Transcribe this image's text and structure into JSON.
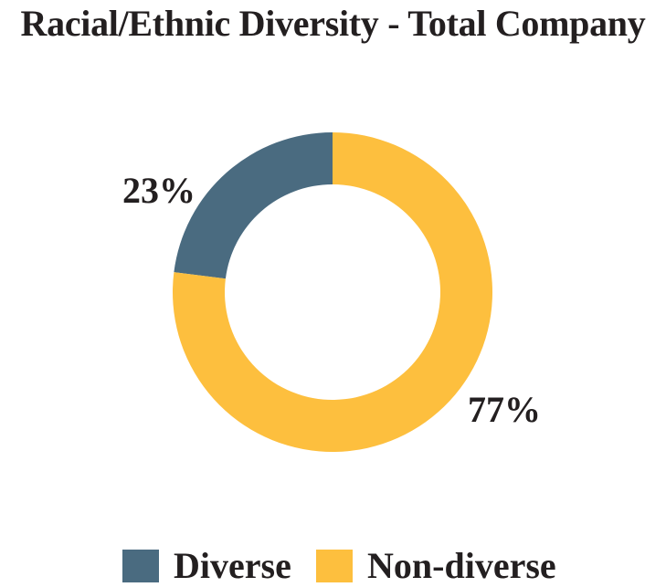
{
  "chart_data": {
    "type": "pie",
    "title": "Racial/Ethnic Diversity - Total Company",
    "donut": true,
    "categories": [
      "Diverse",
      "Non-diverse"
    ],
    "values": [
      23,
      77
    ],
    "labels": [
      "23%",
      "77%"
    ],
    "colors": [
      "#4a6b80",
      "#fdbf3e"
    ],
    "legend": {
      "placement": "bottom",
      "entries": [
        "Diverse",
        "Non-diverse"
      ]
    }
  }
}
